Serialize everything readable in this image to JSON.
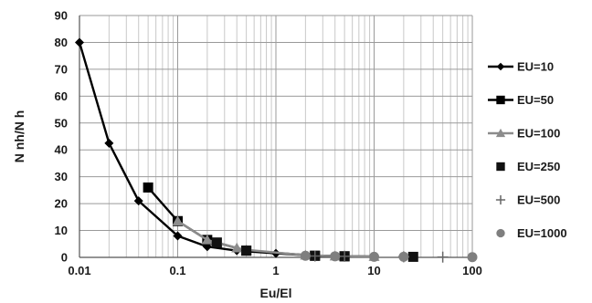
{
  "chart_data": {
    "type": "line",
    "xlabel": "Eu/El",
    "ylabel": "N nh/N h",
    "xscale": "log",
    "xlim": [
      0.01,
      100
    ],
    "ylim": [
      0,
      90
    ],
    "x_ticks": [
      "0.01",
      "0.1",
      "1",
      "10",
      "100"
    ],
    "y_ticks": [
      "0",
      "10",
      "20",
      "30",
      "40",
      "50",
      "60",
      "70",
      "80",
      "90"
    ],
    "grid": "on",
    "legend_position": "right",
    "series": [
      {
        "name": "EU=10",
        "marker": "diamond",
        "color": "#000000",
        "line": true,
        "x": [
          0.01,
          0.02,
          0.04,
          0.1,
          0.2,
          0.4,
          1,
          2,
          4,
          10
        ],
        "y": [
          80,
          42.5,
          21,
          8,
          4,
          2.5,
          1.5,
          0.8,
          0.5,
          0.3
        ]
      },
      {
        "name": "EU=50",
        "marker": "square",
        "color": "#000000",
        "line": true,
        "x": [
          0.05,
          0.1,
          0.2,
          0.25,
          0.5,
          2.5,
          5
        ],
        "y": [
          26,
          13.5,
          6.5,
          5.5,
          2.5,
          0.6,
          0.4
        ]
      },
      {
        "name": "EU=100",
        "marker": "triangle",
        "color": "#8c8c8c",
        "line": true,
        "x": [
          0.1,
          0.2,
          0.4,
          0.5,
          2,
          4,
          10
        ],
        "y": [
          13.5,
          6.5,
          3.5,
          2.8,
          0.8,
          0.5,
          0.3
        ]
      },
      {
        "name": "EU=250",
        "marker": "square",
        "color": "#111111",
        "line": false,
        "x": [
          0.25,
          0.5,
          2.5,
          5,
          25
        ],
        "y": [
          5.5,
          2.5,
          0.6,
          0.4,
          0.2
        ]
      },
      {
        "name": "EU=500",
        "marker": "plus",
        "color": "#666666",
        "line": false,
        "x": [
          2.5,
          5,
          20,
          50
        ],
        "y": [
          0.5,
          0.4,
          0.2,
          0.1
        ]
      },
      {
        "name": "EU=1000",
        "marker": "circle",
        "color": "#7f7f7f",
        "line": false,
        "x": [
          2,
          4,
          10,
          20,
          100
        ],
        "y": [
          0.6,
          0.4,
          0.2,
          0.2,
          0.1
        ]
      }
    ]
  }
}
